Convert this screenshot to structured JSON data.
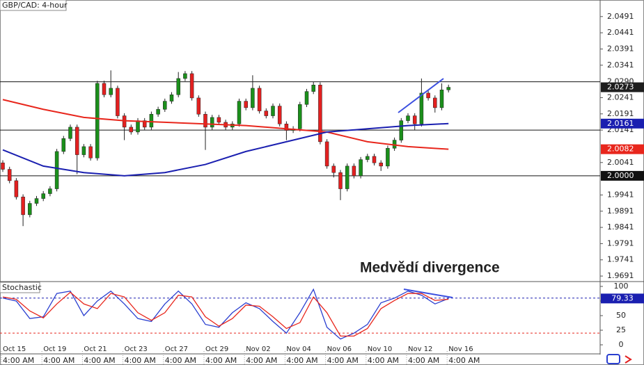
{
  "chart_data": [
    {
      "type": "candlestick",
      "title": "GBP/CAD: 4-hour",
      "annotation": "Medvědí divergence",
      "up_color": "#1b8f1b",
      "down_color": "#e32020",
      "open": [
        2.004,
        2.002,
        1.9985,
        1.9935,
        1.988,
        1.9915,
        1.993,
        1.9945,
        1.996,
        2.0075,
        2.0115,
        2.015,
        2.0065,
        2.009,
        2.0055,
        2.0285,
        2.025,
        2.027,
        2.0185,
        2.015,
        2.0135,
        2.017,
        2.015,
        2.019,
        2.0205,
        2.023,
        2.025,
        2.03,
        2.0315,
        2.024,
        2.019,
        2.015,
        2.018,
        2.0165,
        2.015,
        2.016,
        2.023,
        2.021,
        2.027,
        2.02,
        2.0185,
        2.0215,
        2.016,
        2.014,
        2.0145,
        2.022,
        2.026,
        2.028,
        2.0105,
        2.003,
        2.001,
        1.996,
        2.003,
        2.0,
        2.005,
        2.006,
        2.004,
        2.003,
        2.0085,
        2.011,
        2.017,
        2.0185,
        2.016,
        2.0255,
        2.024,
        2.021,
        2.0265
      ],
      "high": [
        2.0048,
        2.0028,
        1.9993,
        1.9943,
        1.9923,
        1.9938,
        1.9953,
        1.9968,
        2.0083,
        2.0123,
        2.0158,
        2.0158,
        2.0098,
        2.0098,
        2.0293,
        2.0293,
        2.0325,
        2.0278,
        2.0193,
        2.0158,
        2.0178,
        2.0178,
        2.0198,
        2.0213,
        2.0238,
        2.0258,
        2.032,
        2.0323,
        2.0323,
        2.0248,
        2.0198,
        2.0188,
        2.0188,
        2.0173,
        2.0168,
        2.0238,
        2.0238,
        2.031,
        2.0278,
        2.0208,
        2.0223,
        2.0223,
        2.0168,
        2.0153,
        2.0228,
        2.0268,
        2.029,
        2.0288,
        2.0113,
        2.0038,
        2.0018,
        2.0038,
        2.0038,
        2.0058,
        2.0068,
        2.0068,
        2.0048,
        2.0093,
        2.0118,
        2.0178,
        2.0193,
        2.0193,
        2.03,
        2.0263,
        2.0248,
        2.0285,
        2.0281
      ],
      "low": [
        2.0012,
        1.9977,
        1.9927,
        1.9845,
        1.9872,
        1.9907,
        1.9922,
        1.9937,
        1.9952,
        2.0067,
        2.0107,
        2.0005,
        2.0057,
        2.0047,
        2.0047,
        2.0242,
        2.0242,
        2.0177,
        2.011,
        2.0127,
        2.0127,
        2.0142,
        2.0142,
        2.0182,
        2.0197,
        2.0222,
        2.0242,
        2.0292,
        2.0232,
        2.0182,
        2.008,
        2.0142,
        2.0157,
        2.0142,
        2.0142,
        2.0152,
        2.0202,
        2.0202,
        2.0192,
        2.0177,
        2.0177,
        2.0152,
        2.011,
        2.0132,
        2.0137,
        2.0212,
        2.0252,
        2.0097,
        2.0022,
        1.9995,
        1.9925,
        1.9952,
        1.9992,
        1.9992,
        2.0042,
        2.0032,
        2.0015,
        2.0022,
        2.0077,
        2.0102,
        2.0162,
        2.014,
        2.0152,
        2.0232,
        2.0195,
        2.0202,
        2.0257
      ],
      "close": [
        2.002,
        1.9985,
        1.9935,
        1.988,
        1.9915,
        1.993,
        1.9945,
        1.996,
        2.0075,
        2.0115,
        2.015,
        2.0065,
        2.009,
        2.0055,
        2.0285,
        2.025,
        2.027,
        2.0185,
        2.015,
        2.0135,
        2.017,
        2.015,
        2.019,
        2.0205,
        2.023,
        2.025,
        2.03,
        2.0315,
        2.024,
        2.019,
        2.015,
        2.018,
        2.0165,
        2.015,
        2.016,
        2.023,
        2.021,
        2.027,
        2.02,
        2.0185,
        2.0215,
        2.016,
        2.014,
        2.0145,
        2.022,
        2.026,
        2.028,
        2.0105,
        2.003,
        2.001,
        1.996,
        2.003,
        2.0,
        2.005,
        2.006,
        2.004,
        2.003,
        2.0085,
        2.011,
        2.017,
        2.0185,
        2.016,
        2.0255,
        2.024,
        2.021,
        2.0265,
        2.0273
      ],
      "series": [
        {
          "color": "#e8261c",
          "values": [
            2.0235,
            2.0205,
            2.018,
            2.017,
            2.0165,
            2.016,
            2.0155,
            2.0145,
            2.0135,
            2.0105,
            2.009,
            2.0082
          ]
        },
        {
          "color": "#1a1fb0",
          "values": [
            2.008,
            2.003,
            2.001,
            2.0,
            2.001,
            2.0035,
            2.0075,
            2.0105,
            2.0135,
            2.0145,
            2.0155,
            2.0161
          ]
        }
      ],
      "levels": [
        {
          "value": 2.029,
          "label": "2.0290"
        },
        2.0141,
        {
          "value": 2,
          "label": "2.0000"
        }
      ],
      "markers": [
        {
          "value": 2.0273,
          "label": "2.0273",
          "color": "#1e1e1e"
        },
        {
          "value": 2.0161,
          "label": "2.0161",
          "color": "#1a1fb0"
        },
        {
          "value": 2.0082,
          "label": "2.0082",
          "color": "#e8261c"
        },
        {
          "value": 2,
          "label": "2.0000",
          "color": "#111111"
        }
      ],
      "ylim": [
        1.9674,
        2.0542
      ],
      "yticks": [
        2.0491,
        2.0441,
        2.0391,
        2.0341,
        2.0241,
        2.0191,
        2.0141,
        2.0041,
        1.9941,
        1.9891,
        1.9841,
        1.9791,
        1.9741,
        1.9691
      ]
    },
    {
      "type": "line",
      "title": "Stochastic",
      "series": [
        {
          "color": "#2a3fd0",
          "values": [
            80,
            75,
            45,
            48,
            88,
            92,
            50,
            75,
            92,
            70,
            45,
            40,
            70,
            92,
            70,
            35,
            30,
            55,
            72,
            62,
            40,
            20,
            55,
            95,
            30,
            10,
            20,
            35,
            72,
            80,
            92,
            85,
            70,
            79.33
          ]
        },
        {
          "color": "#e8261c",
          "values": [
            82,
            78,
            58,
            46,
            70,
            90,
            70,
            62,
            88,
            82,
            55,
            42,
            55,
            85,
            82,
            48,
            32,
            45,
            68,
            66,
            48,
            28,
            38,
            82,
            55,
            15,
            15,
            28,
            62,
            76,
            88,
            88,
            76,
            78
          ]
        }
      ],
      "levels": [
        {
          "value": 80,
          "color": "#1a1fb0"
        },
        {
          "value": 20,
          "color": "#e8261c"
        }
      ],
      "marker": {
        "value": 79.33,
        "color": "#1a1fb0"
      },
      "ylim": [
        -15.5,
        108.3
      ],
      "yticks": [
        0,
        25,
        50,
        75,
        100
      ],
      "x_labels": [
        {
          "date": "Oct 15",
          "time": "4:00 AM"
        },
        {
          "date": "Oct 19",
          "time": "4:00 AM"
        },
        {
          "date": "Oct 21",
          "time": "4:00 AM"
        },
        {
          "date": "Oct 23",
          "time": "4:00 AM"
        },
        {
          "date": "Oct 27",
          "time": "4:00 AM"
        },
        {
          "date": "Oct 29",
          "time": "4:00 AM"
        },
        {
          "date": "Nov 02",
          "time": "4:00 AM"
        },
        {
          "date": "Nov 04",
          "time": "4:00 AM"
        },
        {
          "date": "Nov 06",
          "time": "4:00 AM"
        },
        {
          "date": "Nov 10",
          "time": "4:00 AM"
        },
        {
          "date": "Nov 12",
          "time": "4:00 AM"
        },
        {
          "date": "Nov 16",
          "time": "4:00 AM"
        }
      ]
    }
  ]
}
